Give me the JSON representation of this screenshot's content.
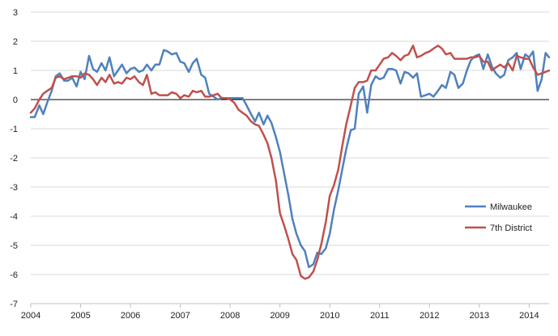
{
  "chart_data": {
    "type": "line",
    "title": "",
    "xlabel": "",
    "ylabel": "",
    "xlim": [
      2004.0,
      2014.4
    ],
    "ylim": [
      -7,
      3
    ],
    "y_ticks": [
      "3",
      "2",
      "1",
      "0",
      "-1",
      "-2",
      "-3",
      "-4",
      "-5",
      "-6",
      "-7"
    ],
    "x_ticks": [
      "2004",
      "2005",
      "2006",
      "2007",
      "2008",
      "2009",
      "2010",
      "2011",
      "2012",
      "2013",
      "2014"
    ],
    "grid": "horizontal",
    "legend_position": "right",
    "series": [
      {
        "name": "Milwaukee",
        "color": "#4f81bd",
        "points": [
          [
            2004.0,
            -0.6
          ],
          [
            2004.08,
            -0.6
          ],
          [
            2004.17,
            -0.2
          ],
          [
            2004.25,
            -0.5
          ],
          [
            2004.33,
            -0.1
          ],
          [
            2004.42,
            0.3
          ],
          [
            2004.5,
            0.8
          ],
          [
            2004.58,
            0.9
          ],
          [
            2004.67,
            0.65
          ],
          [
            2004.75,
            0.65
          ],
          [
            2004.83,
            0.75
          ],
          [
            2004.92,
            0.45
          ],
          [
            2005.0,
            0.95
          ],
          [
            2005.08,
            0.7
          ],
          [
            2005.17,
            1.5
          ],
          [
            2005.25,
            1.05
          ],
          [
            2005.33,
            0.95
          ],
          [
            2005.42,
            1.25
          ],
          [
            2005.5,
            1.0
          ],
          [
            2005.58,
            1.45
          ],
          [
            2005.67,
            0.8
          ],
          [
            2005.75,
            1.0
          ],
          [
            2005.83,
            1.2
          ],
          [
            2005.92,
            0.9
          ],
          [
            2006.0,
            1.05
          ],
          [
            2006.08,
            1.1
          ],
          [
            2006.17,
            0.95
          ],
          [
            2006.25,
            1.0
          ],
          [
            2006.33,
            1.2
          ],
          [
            2006.42,
            1.0
          ],
          [
            2006.5,
            1.2
          ],
          [
            2006.58,
            1.2
          ],
          [
            2006.67,
            1.7
          ],
          [
            2006.75,
            1.65
          ],
          [
            2006.83,
            1.55
          ],
          [
            2006.92,
            1.6
          ],
          [
            2007.0,
            1.3
          ],
          [
            2007.08,
            1.25
          ],
          [
            2007.17,
            0.95
          ],
          [
            2007.25,
            1.25
          ],
          [
            2007.33,
            1.4
          ],
          [
            2007.42,
            0.85
          ],
          [
            2007.5,
            0.75
          ],
          [
            2007.58,
            0.2
          ],
          [
            2007.67,
            0.1
          ],
          [
            2007.75,
            0.0
          ],
          [
            2007.83,
            0.05
          ],
          [
            2007.92,
            0.05
          ],
          [
            2008.0,
            0.05
          ],
          [
            2008.08,
            0.05
          ],
          [
            2008.17,
            0.05
          ],
          [
            2008.25,
            0.05
          ],
          [
            2008.33,
            -0.2
          ],
          [
            2008.42,
            -0.5
          ],
          [
            2008.5,
            -0.75
          ],
          [
            2008.58,
            -0.45
          ],
          [
            2008.67,
            -0.85
          ],
          [
            2008.75,
            -0.55
          ],
          [
            2008.83,
            -0.8
          ],
          [
            2008.92,
            -1.3
          ],
          [
            2009.0,
            -1.8
          ],
          [
            2009.08,
            -2.5
          ],
          [
            2009.17,
            -3.3
          ],
          [
            2009.25,
            -4.1
          ],
          [
            2009.33,
            -4.6
          ],
          [
            2009.42,
            -5.0
          ],
          [
            2009.5,
            -5.2
          ],
          [
            2009.58,
            -5.75
          ],
          [
            2009.67,
            -5.65
          ],
          [
            2009.75,
            -5.25
          ],
          [
            2009.83,
            -5.3
          ],
          [
            2009.92,
            -5.1
          ],
          [
            2010.0,
            -4.6
          ],
          [
            2010.08,
            -3.8
          ],
          [
            2010.17,
            -3.1
          ],
          [
            2010.25,
            -2.4
          ],
          [
            2010.33,
            -1.7
          ],
          [
            2010.42,
            -1.05
          ],
          [
            2010.5,
            -1.0
          ],
          [
            2010.58,
            0.2
          ],
          [
            2010.67,
            0.45
          ],
          [
            2010.75,
            -0.45
          ],
          [
            2010.83,
            0.5
          ],
          [
            2010.92,
            0.8
          ],
          [
            2011.0,
            0.7
          ],
          [
            2011.08,
            0.75
          ],
          [
            2011.17,
            1.05
          ],
          [
            2011.25,
            1.05
          ],
          [
            2011.33,
            1.0
          ],
          [
            2011.42,
            0.55
          ],
          [
            2011.5,
            0.95
          ],
          [
            2011.58,
            0.9
          ],
          [
            2011.67,
            0.75
          ],
          [
            2011.75,
            0.9
          ],
          [
            2011.83,
            0.1
          ],
          [
            2011.92,
            0.15
          ],
          [
            2012.0,
            0.2
          ],
          [
            2012.08,
            0.1
          ],
          [
            2012.17,
            0.3
          ],
          [
            2012.25,
            0.5
          ],
          [
            2012.33,
            0.4
          ],
          [
            2012.42,
            0.95
          ],
          [
            2012.5,
            0.85
          ],
          [
            2012.58,
            0.4
          ],
          [
            2012.67,
            0.55
          ],
          [
            2012.75,
            1.0
          ],
          [
            2012.83,
            1.35
          ],
          [
            2012.92,
            1.5
          ],
          [
            2013.0,
            1.55
          ],
          [
            2013.08,
            1.05
          ],
          [
            2013.17,
            1.55
          ],
          [
            2013.25,
            1.15
          ],
          [
            2013.33,
            0.9
          ],
          [
            2013.42,
            0.75
          ],
          [
            2013.5,
            0.85
          ],
          [
            2013.58,
            1.35
          ],
          [
            2013.67,
            1.45
          ],
          [
            2013.75,
            1.6
          ],
          [
            2013.83,
            1.05
          ],
          [
            2013.92,
            1.55
          ],
          [
            2014.0,
            1.45
          ],
          [
            2014.08,
            1.65
          ],
          [
            2014.17,
            0.3
          ],
          [
            2014.25,
            0.7
          ],
          [
            2014.33,
            1.6
          ],
          [
            2014.4,
            1.45
          ]
        ]
      },
      {
        "name": "7th District",
        "color": "#c0504d",
        "points": [
          [
            2004.0,
            -0.45
          ],
          [
            2004.08,
            -0.3
          ],
          [
            2004.17,
            0.0
          ],
          [
            2004.25,
            0.2
          ],
          [
            2004.33,
            0.3
          ],
          [
            2004.42,
            0.4
          ],
          [
            2004.5,
            0.75
          ],
          [
            2004.58,
            0.8
          ],
          [
            2004.67,
            0.7
          ],
          [
            2004.75,
            0.75
          ],
          [
            2004.83,
            0.8
          ],
          [
            2004.92,
            0.8
          ],
          [
            2005.0,
            0.75
          ],
          [
            2005.08,
            0.9
          ],
          [
            2005.17,
            0.85
          ],
          [
            2005.25,
            0.7
          ],
          [
            2005.33,
            0.5
          ],
          [
            2005.42,
            0.75
          ],
          [
            2005.5,
            0.6
          ],
          [
            2005.58,
            0.85
          ],
          [
            2005.67,
            0.55
          ],
          [
            2005.75,
            0.6
          ],
          [
            2005.83,
            0.55
          ],
          [
            2005.92,
            0.75
          ],
          [
            2006.0,
            0.7
          ],
          [
            2006.08,
            0.8
          ],
          [
            2006.17,
            0.6
          ],
          [
            2006.25,
            0.5
          ],
          [
            2006.33,
            0.85
          ],
          [
            2006.42,
            0.2
          ],
          [
            2006.5,
            0.25
          ],
          [
            2006.58,
            0.15
          ],
          [
            2006.67,
            0.15
          ],
          [
            2006.75,
            0.15
          ],
          [
            2006.83,
            0.25
          ],
          [
            2006.92,
            0.2
          ],
          [
            2007.0,
            0.05
          ],
          [
            2007.08,
            0.15
          ],
          [
            2007.17,
            0.1
          ],
          [
            2007.25,
            0.3
          ],
          [
            2007.33,
            0.25
          ],
          [
            2007.42,
            0.3
          ],
          [
            2007.5,
            0.1
          ],
          [
            2007.58,
            0.1
          ],
          [
            2007.67,
            0.15
          ],
          [
            2007.75,
            0.2
          ],
          [
            2007.83,
            0.05
          ],
          [
            2007.92,
            0.05
          ],
          [
            2008.0,
            0.0
          ],
          [
            2008.08,
            -0.1
          ],
          [
            2008.17,
            -0.35
          ],
          [
            2008.25,
            -0.45
          ],
          [
            2008.33,
            -0.55
          ],
          [
            2008.42,
            -0.75
          ],
          [
            2008.5,
            -0.85
          ],
          [
            2008.58,
            -0.9
          ],
          [
            2008.67,
            -1.2
          ],
          [
            2008.75,
            -1.5
          ],
          [
            2008.83,
            -2.0
          ],
          [
            2008.92,
            -2.8
          ],
          [
            2009.0,
            -3.9
          ],
          [
            2009.08,
            -4.3
          ],
          [
            2009.17,
            -4.8
          ],
          [
            2009.25,
            -5.3
          ],
          [
            2009.33,
            -5.5
          ],
          [
            2009.42,
            -6.05
          ],
          [
            2009.5,
            -6.15
          ],
          [
            2009.58,
            -6.1
          ],
          [
            2009.67,
            -5.9
          ],
          [
            2009.75,
            -5.5
          ],
          [
            2009.83,
            -4.95
          ],
          [
            2009.92,
            -4.2
          ],
          [
            2010.0,
            -3.3
          ],
          [
            2010.08,
            -2.95
          ],
          [
            2010.17,
            -2.4
          ],
          [
            2010.25,
            -1.6
          ],
          [
            2010.33,
            -0.85
          ],
          [
            2010.42,
            -0.2
          ],
          [
            2010.5,
            0.4
          ],
          [
            2010.58,
            0.6
          ],
          [
            2010.67,
            0.6
          ],
          [
            2010.75,
            0.65
          ],
          [
            2010.83,
            1.0
          ],
          [
            2010.92,
            1.0
          ],
          [
            2011.0,
            1.2
          ],
          [
            2011.08,
            1.4
          ],
          [
            2011.17,
            1.45
          ],
          [
            2011.25,
            1.6
          ],
          [
            2011.33,
            1.5
          ],
          [
            2011.42,
            1.35
          ],
          [
            2011.5,
            1.5
          ],
          [
            2011.58,
            1.55
          ],
          [
            2011.67,
            1.85
          ],
          [
            2011.75,
            1.45
          ],
          [
            2011.83,
            1.5
          ],
          [
            2011.92,
            1.6
          ],
          [
            2012.0,
            1.65
          ],
          [
            2012.08,
            1.75
          ],
          [
            2012.17,
            1.85
          ],
          [
            2012.25,
            1.75
          ],
          [
            2012.33,
            1.55
          ],
          [
            2012.42,
            1.6
          ],
          [
            2012.5,
            1.4
          ],
          [
            2012.58,
            1.4
          ],
          [
            2012.67,
            1.4
          ],
          [
            2012.75,
            1.4
          ],
          [
            2012.83,
            1.45
          ],
          [
            2012.92,
            1.45
          ],
          [
            2013.0,
            1.5
          ],
          [
            2013.08,
            1.3
          ],
          [
            2013.17,
            1.3
          ],
          [
            2013.25,
            1.0
          ],
          [
            2013.33,
            1.1
          ],
          [
            2013.42,
            1.2
          ],
          [
            2013.5,
            1.1
          ],
          [
            2013.58,
            1.25
          ],
          [
            2013.67,
            1.0
          ],
          [
            2013.75,
            1.5
          ],
          [
            2013.83,
            1.45
          ],
          [
            2013.92,
            1.4
          ],
          [
            2014.0,
            1.4
          ],
          [
            2014.08,
            1.1
          ],
          [
            2014.17,
            0.85
          ],
          [
            2014.25,
            0.9
          ],
          [
            2014.33,
            0.95
          ],
          [
            2014.4,
            1.0
          ]
        ]
      }
    ]
  }
}
